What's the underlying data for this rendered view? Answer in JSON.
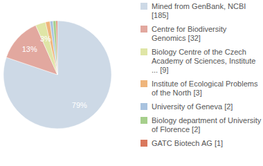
{
  "chart_data": {
    "type": "pie",
    "categories": [
      "Mined from GenBank, NCBI [185]",
      "Centre for Biodiversity Genomics [32]",
      "Biology Centre of the Czech Academy of Sciences, Institute ... [9]",
      "Institute of Ecological Problems of the North [3]",
      "University of Geneva [2]",
      "Biology department of University of Florence [2]",
      "GATC Biotech AG [1]"
    ],
    "values": [
      79,
      13,
      3,
      1.3,
      0.9,
      0.9,
      0.4
    ],
    "value_labels": [
      "79%",
      "13%",
      "3%",
      null,
      null,
      null,
      null
    ],
    "colors": [
      "#cdd9e6",
      "#e2a89f",
      "#dfe5a6",
      "#efb57c",
      "#a9c3df",
      "#a6cf8c",
      "#d9785d"
    ],
    "data_labels": true,
    "legend": "right"
  }
}
